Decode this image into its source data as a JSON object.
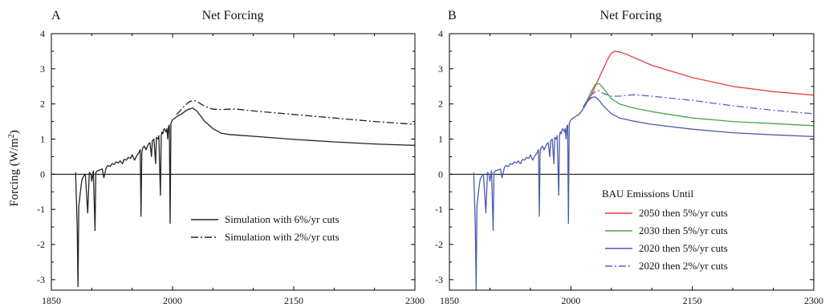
{
  "colors": {
    "panelA_line": "#222222",
    "red": "#e8413f",
    "green": "#4aa64a",
    "blue": "#4a5bb0",
    "blue_dashdot": "#5a63c8"
  },
  "chart_data": [
    {
      "type": "line",
      "panel_letter": "A",
      "title": "Net Forcing",
      "ylabel": "Forcing (W/m",
      "ylabel_superscript": "2",
      "ylabel_suffix": ")",
      "xlim": [
        1850,
        2300
      ],
      "ylim": [
        -3.3,
        4
      ],
      "xticks": [
        1850,
        2000,
        2150,
        2300
      ],
      "yticks": [
        -3,
        -2,
        -1,
        0,
        1,
        2,
        3,
        4
      ],
      "legend_position": "bottom-right",
      "series": [
        {
          "name": "Simulation with 6%/yr cuts",
          "color": "#222222",
          "dash": "solid",
          "x": [
            1880,
            1882,
            1883,
            1884,
            1885,
            1886,
            1887,
            1888,
            1890,
            1892,
            1895,
            1897,
            1899,
            1900,
            1902,
            1904,
            1905,
            1907,
            1910,
            1913,
            1915,
            1918,
            1920,
            1923,
            1925,
            1928,
            1930,
            1933,
            1935,
            1938,
            1940,
            1943,
            1945,
            1948,
            1950,
            1953,
            1955,
            1958,
            1960,
            1961,
            1962,
            1963,
            1965,
            1967,
            1970,
            1972,
            1974,
            1975,
            1977,
            1979,
            1980,
            1982,
            1983,
            1985,
            1986,
            1987,
            1988,
            1989,
            1990,
            1992,
            1993,
            1994,
            1995,
            1996,
            1997,
            1998,
            1999,
            2000,
            2003,
            2006,
            2010,
            2015,
            2020,
            2025,
            2030,
            2035,
            2040,
            2050,
            2060,
            2070,
            2075,
            2100,
            2150,
            2200,
            2250,
            2300
          ],
          "y": [
            0.05,
            -1.5,
            -3.2,
            -0.9,
            -0.7,
            -0.5,
            -0.3,
            -0.15,
            -0.05,
            0.0,
            -1.1,
            0.05,
            0.0,
            -0.2,
            0.1,
            -1.6,
            0.05,
            0.1,
            0.12,
            0.15,
            -0.1,
            0.2,
            0.25,
            0.22,
            0.3,
            0.28,
            0.35,
            0.32,
            0.38,
            0.3,
            0.42,
            0.4,
            0.48,
            0.45,
            0.55,
            0.4,
            0.5,
            0.6,
            0.7,
            -1.2,
            0.6,
            0.75,
            0.8,
            0.7,
            0.85,
            0.9,
            0.5,
            0.95,
            1.0,
            0.3,
            1.05,
            1.0,
            1.1,
            -0.6,
            1.1,
            1.2,
            1.15,
            1.25,
            1.3,
            1.2,
            1.3,
            1.0,
            1.35,
            1.4,
            -1.4,
            1.45,
            1.5,
            1.55,
            1.6,
            1.65,
            1.7,
            1.78,
            1.85,
            1.88,
            1.8,
            1.65,
            1.5,
            1.3,
            1.17,
            1.13,
            1.12,
            1.08,
            0.99,
            0.92,
            0.86,
            0.82
          ]
        },
        {
          "name": "Simulation with 2%/yr cuts",
          "color": "#222222",
          "dash": "dashdot",
          "x": [
            2005,
            2010,
            2015,
            2020,
            2025,
            2030,
            2035,
            2040,
            2050,
            2060,
            2070,
            2080,
            2100,
            2150,
            2200,
            2250,
            2300
          ],
          "y": [
            1.7,
            1.82,
            1.95,
            2.05,
            2.1,
            2.08,
            2.0,
            1.93,
            1.85,
            1.84,
            1.85,
            1.85,
            1.8,
            1.7,
            1.6,
            1.5,
            1.42
          ]
        }
      ]
    },
    {
      "type": "line",
      "panel_letter": "B",
      "title": "Net Forcing",
      "xlim": [
        1850,
        2300
      ],
      "ylim": [
        -3.3,
        4
      ],
      "xticks": [
        1850,
        2000,
        2150,
        2300
      ],
      "yticks": [
        -3,
        -2,
        -1,
        0,
        1,
        2,
        3,
        4
      ],
      "legend_title": "BAU Emissions Until",
      "legend_position": "bottom-right",
      "series": [
        {
          "name": "2050 then 5%/yr cuts",
          "color": "#e8413f",
          "dash": "solid",
          "x": [
            2015,
            2020,
            2025,
            2030,
            2035,
            2040,
            2045,
            2050,
            2055,
            2060,
            2070,
            2080,
            2100,
            2150,
            2200,
            2250,
            2300
          ],
          "y": [
            1.9,
            2.05,
            2.25,
            2.5,
            2.75,
            3.0,
            3.25,
            3.45,
            3.5,
            3.48,
            3.4,
            3.3,
            3.1,
            2.75,
            2.5,
            2.35,
            2.25
          ]
        },
        {
          "name": "2030 then 5%/yr cuts",
          "color": "#4aa64a",
          "dash": "solid",
          "x": [
            2015,
            2020,
            2025,
            2030,
            2035,
            2040,
            2050,
            2060,
            2075,
            2100,
            2150,
            2200,
            2250,
            2300
          ],
          "y": [
            1.9,
            2.1,
            2.35,
            2.55,
            2.58,
            2.45,
            2.15,
            2.0,
            1.9,
            1.78,
            1.6,
            1.5,
            1.44,
            1.38
          ]
        },
        {
          "name": "2020 then 5%/yr cuts",
          "color": "#4a5bb0",
          "dash": "solid",
          "x": [
            1880,
            1882,
            1883,
            1884,
            1885,
            1886,
            1887,
            1888,
            1890,
            1892,
            1895,
            1897,
            1899,
            1900,
            1902,
            1904,
            1905,
            1907,
            1910,
            1913,
            1915,
            1918,
            1920,
            1923,
            1925,
            1928,
            1930,
            1933,
            1935,
            1938,
            1940,
            1943,
            1945,
            1948,
            1950,
            1953,
            1955,
            1958,
            1960,
            1961,
            1962,
            1963,
            1965,
            1967,
            1970,
            1972,
            1974,
            1975,
            1977,
            1979,
            1980,
            1982,
            1983,
            1985,
            1986,
            1987,
            1988,
            1989,
            1990,
            1992,
            1993,
            1994,
            1995,
            1996,
            1997,
            1998,
            1999,
            2000,
            2003,
            2006,
            2010,
            2015,
            2020,
            2025,
            2030,
            2035,
            2040,
            2050,
            2060,
            2070,
            2075,
            2100,
            2150,
            2200,
            2250,
            2300
          ],
          "y": [
            0.05,
            -1.5,
            -3.3,
            -0.9,
            -0.7,
            -0.5,
            -0.3,
            -0.15,
            -0.05,
            0.0,
            -1.1,
            0.05,
            0.0,
            -0.2,
            0.1,
            -1.6,
            0.05,
            0.1,
            0.12,
            0.15,
            -0.1,
            0.2,
            0.25,
            0.22,
            0.3,
            0.28,
            0.35,
            0.32,
            0.38,
            0.3,
            0.42,
            0.4,
            0.48,
            0.45,
            0.55,
            0.4,
            0.5,
            0.6,
            0.7,
            -1.2,
            0.6,
            0.75,
            0.8,
            0.7,
            0.85,
            0.9,
            0.5,
            0.95,
            1.0,
            0.3,
            1.05,
            1.0,
            1.1,
            -0.6,
            1.1,
            1.2,
            1.15,
            1.25,
            1.3,
            1.2,
            1.3,
            1.0,
            1.35,
            1.4,
            -1.4,
            1.45,
            1.5,
            1.55,
            1.6,
            1.65,
            1.7,
            1.85,
            2.05,
            2.18,
            2.2,
            2.1,
            1.95,
            1.72,
            1.6,
            1.55,
            1.52,
            1.42,
            1.28,
            1.18,
            1.12,
            1.07
          ]
        },
        {
          "name": "2020 then 2%/yr cuts",
          "color": "#5a63c8",
          "dash": "dashdot",
          "x": [
            2015,
            2020,
            2025,
            2030,
            2035,
            2040,
            2050,
            2060,
            2070,
            2080,
            2100,
            2150,
            2200,
            2250,
            2300
          ],
          "y": [
            1.9,
            2.1,
            2.25,
            2.35,
            2.38,
            2.3,
            2.22,
            2.22,
            2.25,
            2.26,
            2.22,
            2.1,
            1.95,
            1.82,
            1.72
          ]
        }
      ]
    }
  ]
}
